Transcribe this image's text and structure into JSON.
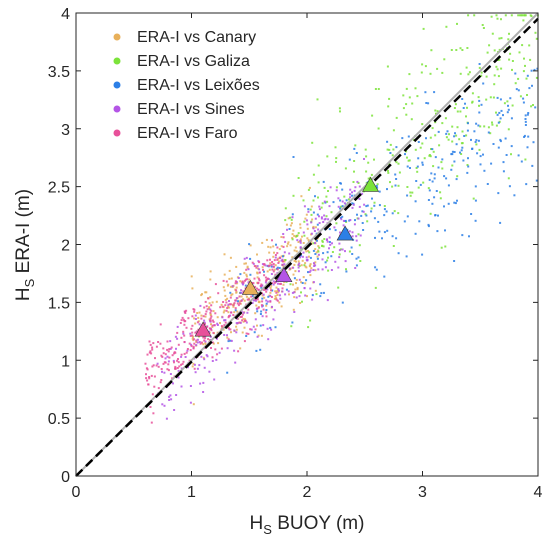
{
  "chart_data": {
    "type": "scatter",
    "xlabel": {
      "main": "H",
      "sub": "S",
      "rest": " BUOY (m)"
    },
    "ylabel": {
      "main": "H",
      "sub": "S",
      "rest": " ERA-I (m)"
    },
    "xlim": [
      0,
      4
    ],
    "ylim": [
      0,
      4
    ],
    "xticks": [
      "0",
      "1",
      "2",
      "3",
      "4"
    ],
    "yticks": [
      "0",
      "0.5",
      "1",
      "1.5",
      "2",
      "2.5",
      "3",
      "3.5",
      "4"
    ],
    "grid": false,
    "legend_position": "top-left",
    "reference_lines": [
      {
        "kind": "identity",
        "style": "solid",
        "color": "#b0b0b0",
        "points": [
          [
            0,
            0
          ],
          [
            4,
            4
          ]
        ]
      },
      {
        "kind": "fit",
        "style": "dashed",
        "color": "#000000",
        "points": [
          [
            0,
            0
          ],
          [
            4,
            3.95
          ]
        ]
      }
    ],
    "series": [
      {
        "name": "ERA-I vs Canary",
        "color": "#E8B05A",
        "cluster": {
          "x_range": [
            1.0,
            2.1
          ],
          "center_y": 1.6,
          "slope": 0.72,
          "spread": 0.18,
          "count": 320
        },
        "mean": [
          1.51,
          1.62
        ]
      },
      {
        "name": "ERA-I vs Galiza",
        "color": "#7CE33A",
        "cluster": {
          "x_range": [
            1.8,
            4.0
          ],
          "center_y": 2.5,
          "slope": 0.9,
          "spread": 0.38,
          "count": 330
        },
        "mean": [
          2.55,
          2.51
        ]
      },
      {
        "name": "ERA-I vs Leixões",
        "color": "#2C7FE6",
        "cluster": {
          "x_range": [
            1.3,
            4.0
          ],
          "center_y": 2.1,
          "slope": 0.65,
          "spread": 0.3,
          "count": 320
        },
        "mean": [
          2.33,
          2.09
        ]
      },
      {
        "name": "ERA-I vs Sines",
        "color": "#B455E6",
        "cluster": {
          "x_range": [
            0.7,
            2.5
          ],
          "center_y": 1.72,
          "slope": 0.85,
          "spread": 0.2,
          "count": 330
        },
        "mean": [
          1.8,
          1.73
        ]
      },
      {
        "name": "ERA-I vs Faro",
        "color": "#E8509A",
        "cluster": {
          "x_range": [
            0.6,
            1.8
          ],
          "center_y": 1.26,
          "slope": 0.75,
          "spread": 0.14,
          "count": 330
        },
        "mean": [
          1.1,
          1.26
        ]
      }
    ]
  }
}
